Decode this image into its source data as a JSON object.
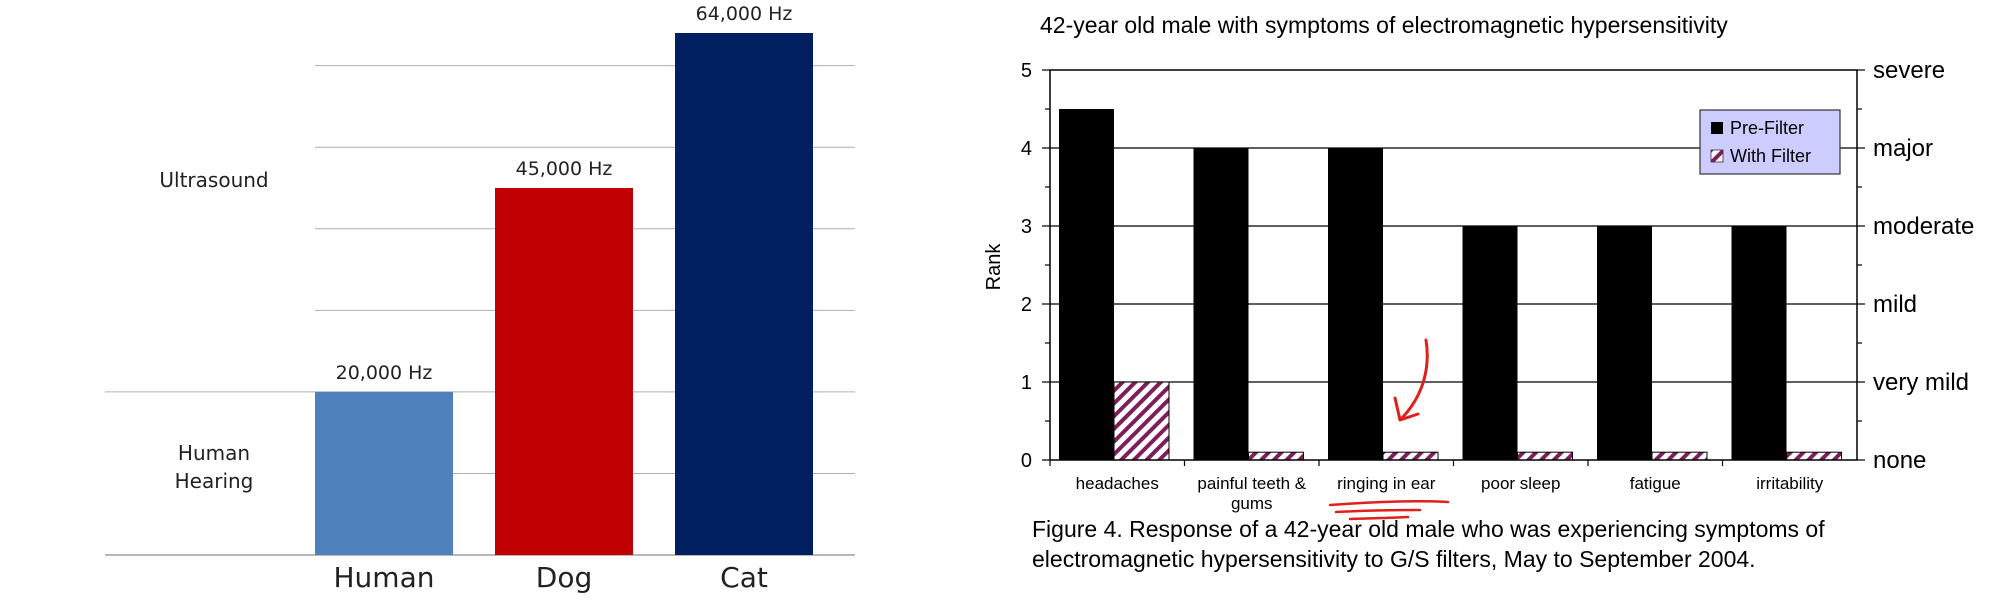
{
  "chart_data": [
    {
      "type": "bar",
      "title": "",
      "xlabel": "",
      "ylabel": "",
      "categories": [
        "Human",
        "Dog",
        "Cat"
      ],
      "values": [
        20000,
        45000,
        64000
      ],
      "value_labels": [
        "20,000 Hz",
        "45,000 Hz",
        "64,000 Hz"
      ],
      "ylim": [
        0,
        64000
      ],
      "grid": true,
      "region_labels": {
        "ultrasound": "Ultrasound",
        "human_hearing_line1": "Human",
        "human_hearing_line2": "Hearing"
      },
      "colors": [
        "#4f81bd",
        "#c00000",
        "#002060"
      ]
    },
    {
      "type": "bar",
      "title": "42-year old male with symptoms of electromagnetic hypersensitivity",
      "xlabel": "",
      "ylabel": "Rank",
      "ylim": [
        0,
        5
      ],
      "yticks": [
        "0",
        "1",
        "2",
        "3",
        "4",
        "5"
      ],
      "right_tick_labels": [
        "none",
        "very mild",
        "mild",
        "moderate",
        "major",
        "severe"
      ],
      "grid": true,
      "legend_position": "top-right",
      "categories": [
        [
          "headaches"
        ],
        [
          "painful teeth &",
          "gums"
        ],
        [
          "ringing in ear"
        ],
        [
          "poor sleep"
        ],
        [
          "fatigue"
        ],
        [
          "irritability"
        ]
      ],
      "series": [
        {
          "name": "Pre-Filter",
          "values": [
            4.5,
            4,
            4,
            3,
            3,
            3
          ],
          "color": "#000000"
        },
        {
          "name": "With Filter",
          "values": [
            1,
            0.1,
            0.1,
            0.1,
            0.1,
            0.1
          ],
          "color": "#7f1f5a"
        }
      ],
      "caption": [
        "Figure 4.  Response of a 42-year old male who was experiencing symptoms of",
        "electromagnetic hypersensitivity to G/S filters, May to September 2004."
      ],
      "annotation": {
        "kind": "hand-drawn arrow and underline",
        "target": "ringing in ear",
        "color": "#e0201b"
      }
    }
  ]
}
